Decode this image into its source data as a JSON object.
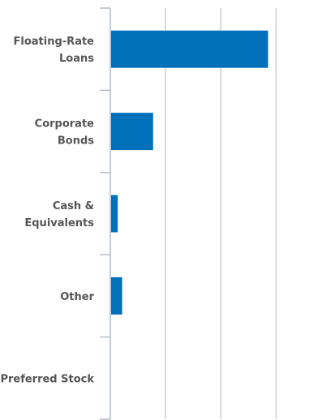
{
  "chart_data": {
    "type": "bar",
    "orientation": "horizontal",
    "categories": [
      [
        "Floating-Rate",
        "Loans"
      ],
      [
        "Corporate",
        "Bonds"
      ],
      [
        "Cash &",
        "Equivalents"
      ],
      [
        "Other"
      ],
      [
        "Preferred Stock"
      ]
    ],
    "values": [
      71,
      19,
      3,
      5,
      0
    ],
    "xlim": [
      0,
      75
    ],
    "grid": true,
    "title": "",
    "xlabel": "",
    "ylabel": "",
    "colors": {
      "bar": "#0070bb",
      "grid": "#c8cdd4",
      "axis": "#b4bcc8",
      "label": "#555555"
    }
  }
}
